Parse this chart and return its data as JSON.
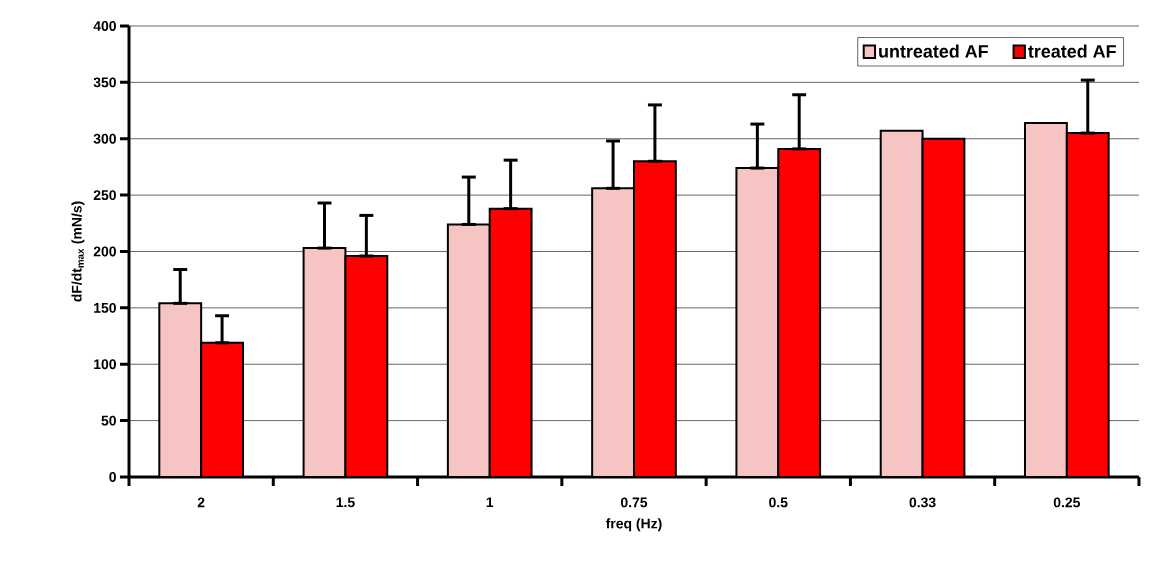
{
  "chart_data": {
    "type": "bar",
    "xlabel": "freq (Hz)",
    "ylabel": "dF/dt$_{max}$ (mN/s)",
    "categories": [
      "2",
      "1.5",
      "1",
      "0.75",
      "0.5",
      "0.33",
      "0.25"
    ],
    "series": [
      {
        "name": "untreated AF",
        "color": "#f7c4c4",
        "values": [
          154,
          203,
          224,
          256,
          274,
          307,
          314
        ],
        "errors": [
          [
            154,
            184
          ],
          [
            203,
            243
          ],
          [
            224,
            266
          ],
          [
            256,
            298
          ],
          [
            274,
            313
          ],
          null,
          null
        ]
      },
      {
        "name": "treated AF",
        "color": "#ff0000",
        "values": [
          119,
          196,
          238,
          280,
          291,
          300,
          305
        ],
        "errors": [
          [
            119,
            143
          ],
          [
            196,
            232
          ],
          [
            238,
            281
          ],
          [
            280,
            330
          ],
          [
            291,
            339
          ],
          null,
          [
            305,
            352
          ]
        ]
      }
    ],
    "ylim": [
      0,
      400
    ],
    "yticks": [
      0,
      50,
      100,
      150,
      200,
      250,
      300,
      350,
      400
    ],
    "grid": "y",
    "legend": "top right"
  }
}
